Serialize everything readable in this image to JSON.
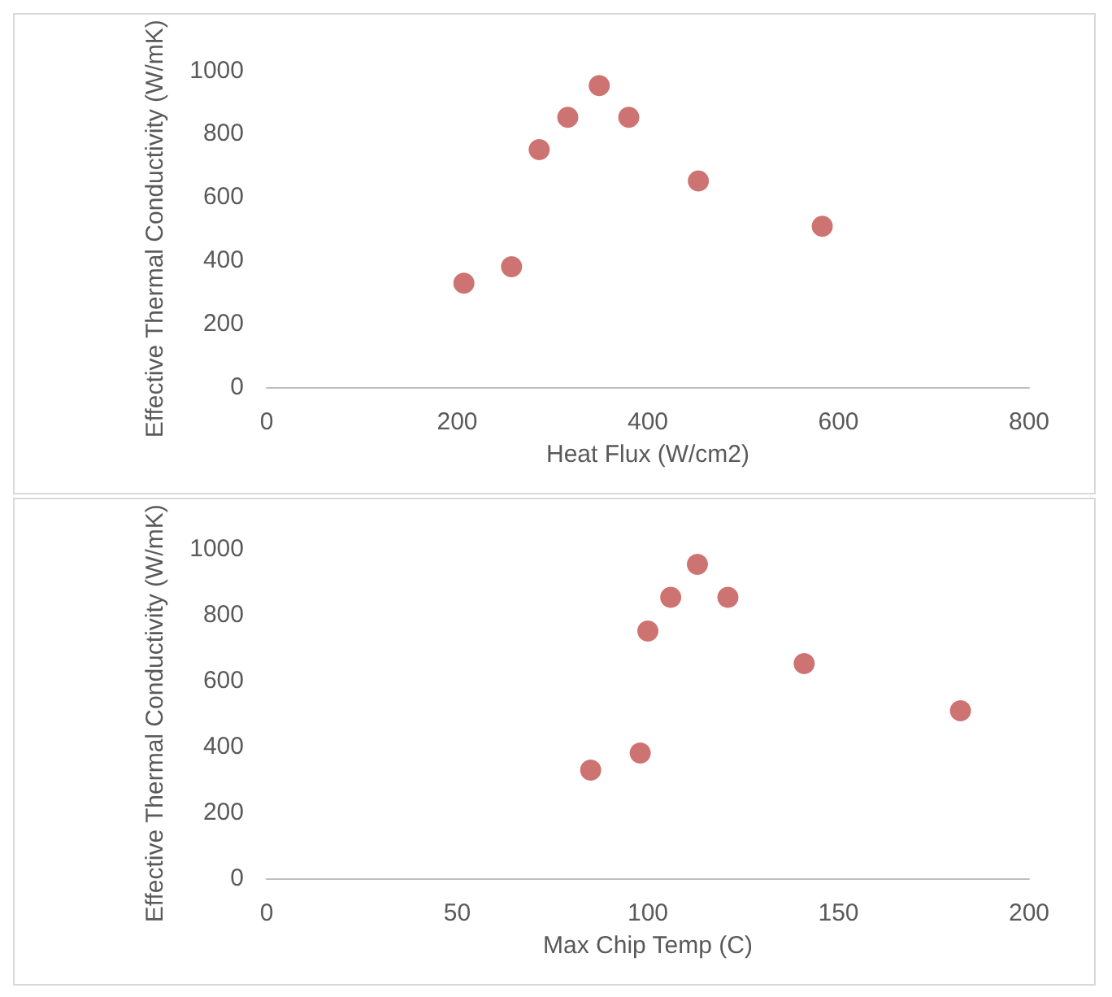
{
  "chart_data": [
    {
      "type": "scatter",
      "xlabel": "Heat Flux (W/cm2)",
      "ylabel": "Effective Thermal Conductivity (W/mK)",
      "x": [
        207,
        257,
        286,
        316,
        349,
        380,
        453,
        583
      ],
      "values": [
        328,
        380,
        750,
        852,
        952,
        852,
        651,
        508
      ],
      "color": "#c0504d",
      "marker": "circle",
      "xlim": [
        0,
        800
      ],
      "xticks": [
        0,
        200,
        400,
        600,
        800
      ],
      "ylim": [
        0,
        1000
      ],
      "yticks": [
        0,
        200,
        400,
        600,
        800,
        1000
      ]
    },
    {
      "type": "scatter",
      "xlabel": "Max Chip Temp (C)",
      "ylabel": "Effective Thermal Conductivity (W/mK)",
      "x": [
        85,
        98,
        100,
        106,
        113,
        121,
        141,
        182
      ],
      "values": [
        328,
        380,
        750,
        852,
        952,
        852,
        651,
        508
      ],
      "color": "#c0504d",
      "marker": "circle",
      "xlim": [
        0,
        200
      ],
      "xticks": [
        0,
        50,
        100,
        150,
        200
      ],
      "ylim": [
        0,
        1000
      ],
      "yticks": [
        0,
        200,
        400,
        600,
        800,
        1000
      ]
    }
  ]
}
